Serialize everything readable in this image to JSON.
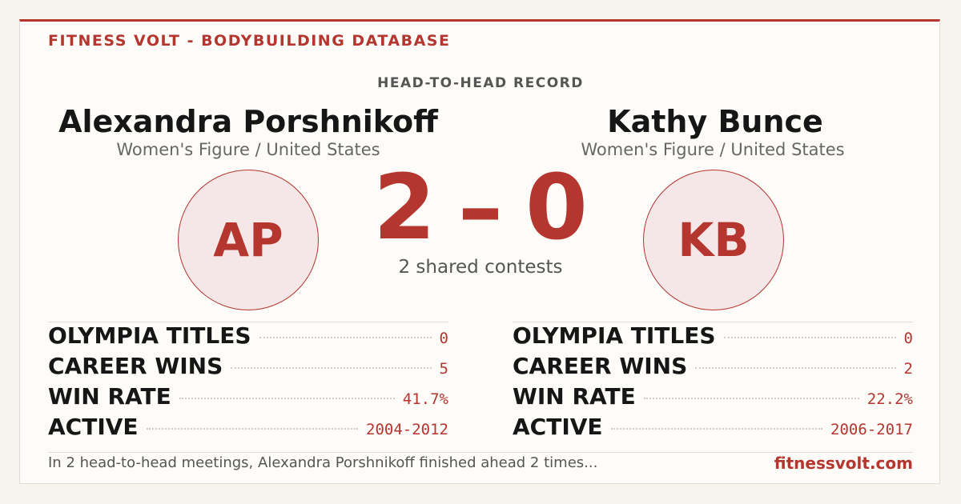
{
  "header": {
    "brand": "FITNESS VOLT - BODYBUILDING DATABASE",
    "subtitle": "HEAD-TO-HEAD RECORD"
  },
  "athletes": [
    {
      "name": "Alexandra Porshnikoff",
      "division": "Women's Figure / United States",
      "initials": "AP",
      "stats": [
        {
          "label": "OLYMPIA TITLES",
          "value": "0"
        },
        {
          "label": "CAREER WINS",
          "value": "5"
        },
        {
          "label": "WIN RATE",
          "value": "41.7%"
        },
        {
          "label": "ACTIVE",
          "value": "2004-2012"
        }
      ]
    },
    {
      "name": "Kathy Bunce",
      "division": "Women's Figure / United States",
      "initials": "KB",
      "stats": [
        {
          "label": "OLYMPIA TITLES",
          "value": "0"
        },
        {
          "label": "CAREER WINS",
          "value": "2"
        },
        {
          "label": "WIN RATE",
          "value": "22.2%"
        },
        {
          "label": "ACTIVE",
          "value": "2006-2017"
        }
      ]
    }
  ],
  "score": {
    "left": "2",
    "separator": "–",
    "right": "0",
    "shared": "2 shared contests"
  },
  "footer": {
    "summary": "In 2 head-to-head meetings, Alexandra Porshnikoff finished ahead 2 times...",
    "site": "fitnessvolt.com"
  }
}
